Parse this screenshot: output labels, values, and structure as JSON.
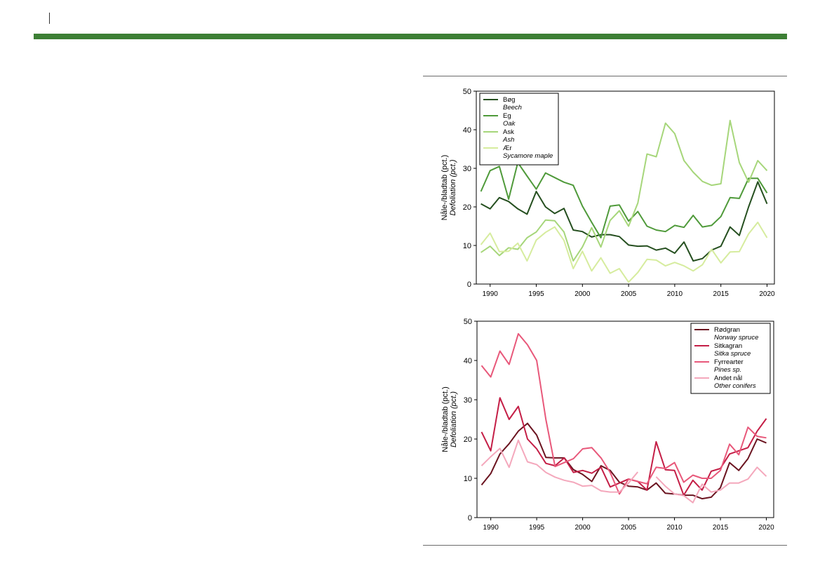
{
  "charts": [
    {
      "type": "line",
      "ylabel": "Nåle-/bladtab (pct.)",
      "ylabel_en": "Defoliation (pct.)",
      "xticks": [
        1990,
        1995,
        2000,
        2005,
        2010,
        2015,
        2020
      ],
      "yticks": [
        0,
        10,
        20,
        30,
        40,
        50
      ],
      "xlim": [
        1988.5,
        2020.8
      ],
      "ylim": [
        0,
        50
      ],
      "legend_position": "top-left",
      "x": [
        1989,
        1990,
        1991,
        1992,
        1993,
        1994,
        1995,
        1996,
        1997,
        1998,
        1999,
        2000,
        2001,
        2002,
        2003,
        2004,
        2005,
        2006,
        2007,
        2008,
        2009,
        2010,
        2011,
        2012,
        2013,
        2014,
        2015,
        2016,
        2017,
        2018,
        2019,
        2020
      ],
      "series": [
        {
          "name": "Bøg",
          "name_en": "Beech",
          "color": "#254f1f",
          "values": [
            20.8,
            19.5,
            22.4,
            21.4,
            19.5,
            18.1,
            24.0,
            20.0,
            18.3,
            19.6,
            14.0,
            13.6,
            12.2,
            12.8,
            12.8,
            12.3,
            10.1,
            9.8,
            9.9,
            8.8,
            9.3,
            8.0,
            10.9,
            6.0,
            6.6,
            8.8,
            9.8,
            14.8,
            12.6,
            20.0,
            26.5,
            20.8
          ]
        },
        {
          "name": "Eg",
          "name_en": "Oak",
          "color": "#4f9a3a",
          "values": [
            24.0,
            29.4,
            30.5,
            22.0,
            31.5,
            28.0,
            24.6,
            28.8,
            27.6,
            26.4,
            25.6,
            20.2,
            16.0,
            12.0,
            20.2,
            20.5,
            16.3,
            18.8,
            15.0,
            14.0,
            13.6,
            15.2,
            14.7,
            17.8,
            14.8,
            15.2,
            17.5,
            22.4,
            22.2,
            27.4,
            27.4,
            23.6
          ]
        },
        {
          "name": "Ask",
          "name_en": "Ash",
          "color": "#a6d67a",
          "values": [
            8.2,
            9.8,
            7.4,
            9.4,
            9.0,
            12.0,
            13.5,
            16.6,
            16.4,
            13.5,
            6.0,
            9.6,
            14.6,
            9.6,
            16.5,
            19.0,
            15.0,
            21.0,
            33.7,
            33.0,
            41.7,
            39.0,
            32.0,
            29.0,
            26.6,
            25.6,
            26.0,
            42.4,
            31.5,
            26.4,
            32.0,
            29.4
          ]
        },
        {
          "name": "Ær",
          "name_en": "Sycamore maple",
          "color": "#d6ec9e",
          "values": [
            10.2,
            13.2,
            8.4,
            8.5,
            10.6,
            6.0,
            11.4,
            13.4,
            14.8,
            11.3,
            4.0,
            8.5,
            3.4,
            6.8,
            2.8,
            4.0,
            0.5,
            3.0,
            6.4,
            6.2,
            4.7,
            5.6,
            4.7,
            3.4,
            5.0,
            9.0,
            5.5,
            8.3,
            8.4,
            13.0,
            16.0,
            12.0
          ]
        }
      ]
    },
    {
      "type": "line",
      "ylabel": "Nåle-/bladtab (pct.)",
      "ylabel_en": "Defoliation (pct.)",
      "xticks": [
        1990,
        1995,
        2000,
        2005,
        2010,
        2015,
        2020
      ],
      "yticks": [
        0,
        10,
        20,
        30,
        40,
        50
      ],
      "xlim": [
        1988.5,
        2020.8
      ],
      "ylim": [
        0,
        50
      ],
      "legend_position": "top-right",
      "x": [
        1989,
        1990,
        1991,
        1992,
        1993,
        1994,
        1995,
        1996,
        1997,
        1998,
        1999,
        2000,
        2001,
        2002,
        2003,
        2004,
        2005,
        2006,
        2007,
        2008,
        2009,
        2010,
        2011,
        2012,
        2013,
        2014,
        2015,
        2016,
        2017,
        2018,
        2019,
        2020
      ],
      "series": [
        {
          "name": "Rødgran",
          "name_en": "Norway spruce",
          "color": "#6b1420",
          "values": [
            8.3,
            11.2,
            16.2,
            18.8,
            22.0,
            24.0,
            21.0,
            15.3,
            15.2,
            15.2,
            12.2,
            11.0,
            9.2,
            13.2,
            12.0,
            9.0,
            8.0,
            7.8,
            7.0,
            8.8,
            6.2,
            6.0,
            5.7,
            5.7,
            4.8,
            5.2,
            7.6,
            14.0,
            12.0,
            15.0,
            20.0,
            19.0
          ]
        },
        {
          "name": "Sitkagran",
          "name_en": "Sitka spruce",
          "color": "#c41e46",
          "values": [
            21.8,
            17.0,
            30.5,
            25.0,
            28.3,
            20.0,
            17.5,
            13.8,
            13.2,
            15.2,
            11.5,
            12.0,
            11.3,
            12.8,
            7.8,
            8.8,
            9.8,
            9.2,
            7.0,
            19.3,
            12.2,
            12.0,
            5.7,
            9.5,
            7.0,
            11.8,
            12.5,
            16.2,
            17.0,
            17.8,
            22.0,
            25.2
          ]
        },
        {
          "name": "Fyrrearter",
          "name_en": "Pines sp.",
          "color": "#e8587a",
          "values": [
            38.7,
            35.8,
            42.4,
            39.0,
            46.8,
            44.0,
            40.0,
            25.0,
            13.0,
            14.0,
            15.0,
            17.5,
            17.8,
            15.2,
            11.5,
            6.0,
            9.8,
            9.2,
            8.6,
            12.8,
            12.5,
            14.0,
            9.0,
            10.8,
            10.0,
            10.0,
            12.0,
            18.7,
            16.0,
            23.0,
            20.7,
            20.3
          ]
        },
        {
          "name": "Andet nål",
          "name_en": "Other conifers",
          "color": "#f4a8bc",
          "values": [
            13.2,
            15.5,
            17.6,
            12.8,
            19.7,
            14.2,
            13.5,
            11.5,
            10.3,
            9.5,
            9.0,
            8.0,
            8.2,
            6.8,
            6.5,
            6.5,
            8.8,
            11.6,
            null,
            10.4,
            8.0,
            6.0,
            5.6,
            3.8,
            8.5,
            6.5,
            7.0,
            8.8,
            8.8,
            9.8,
            12.8,
            10.5
          ]
        }
      ]
    }
  ]
}
